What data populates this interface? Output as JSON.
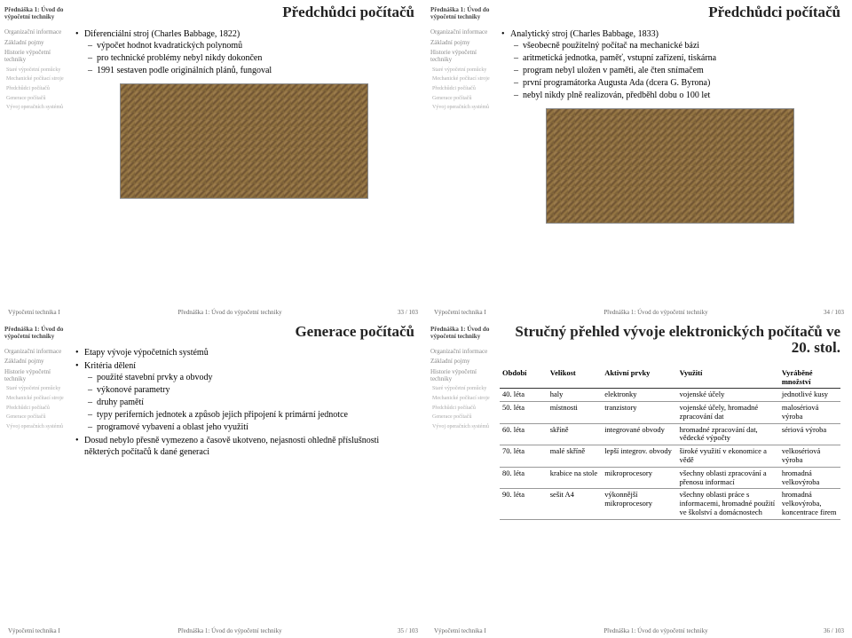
{
  "sidebar": {
    "header": "Přednáška 1:\nÚvod do výpočetní techniky",
    "items": [
      {
        "label": "Organizační informace",
        "lvl": 1
      },
      {
        "label": "Základní pojmy",
        "lvl": 1
      },
      {
        "label": "Historie výpočetní techniky",
        "lvl": 1
      },
      {
        "label": "Staré výpočetní pomůcky",
        "lvl": 2
      },
      {
        "label": "Mechanické počítací stroje",
        "lvl": 2
      },
      {
        "label": "Předchůdci počítačů",
        "lvl": 2
      },
      {
        "label": "Generace počítačů",
        "lvl": 2
      },
      {
        "label": "Vývoj operačních systémů",
        "lvl": 2
      }
    ]
  },
  "footer": {
    "left": "Výpočetní technika I",
    "mid": "Přednáška 1: Úvod do výpočetní techniky"
  },
  "slides": [
    {
      "title": "Předchůdci počítačů",
      "page": "33 / 103",
      "bullets": [
        {
          "t": "Diferenciální stroj (Charles Babbage, 1822)",
          "sub": [
            {
              "t": "výpočet hodnot kvadratických polynomů"
            },
            {
              "t": "pro technické problémy nebyl nikdy dokončen"
            },
            {
              "t": "1991 sestaven podle originálních plánů, fungoval"
            }
          ]
        }
      ],
      "image": true
    },
    {
      "title": "Předchůdci počítačů",
      "page": "34 / 103",
      "bullets": [
        {
          "t": "Analytický stroj (Charles Babbage, 1833)",
          "sub": [
            {
              "t": "všeobecně použitelný počítač na mechanické bázi"
            },
            {
              "t": "aritmetická jednotka, paměť, vstupní zařízení, tiskárna"
            },
            {
              "t": "program nebyl uložen v paměti, ale čten snímačem"
            },
            {
              "t": "první programátorka Augusta Ada (dcera G. Byrona)"
            },
            {
              "t": "nebyl nikdy plně realizován, předběhl dobu o 100 let"
            }
          ]
        }
      ],
      "image": true
    },
    {
      "title": "Generace počítačů",
      "page": "35 / 103",
      "bullets": [
        {
          "t": "Etapy vývoje výpočetních systémů"
        },
        {
          "t": "Kritéria dělení",
          "sub": [
            {
              "t": "použité stavební prvky a obvody"
            },
            {
              "t": "výkonové parametry"
            },
            {
              "t": "druhy pamětí"
            },
            {
              "t": "typy periferních jednotek a způsob jejich připojení k primární jednotce"
            },
            {
              "t": "programové vybavení a oblast jeho využití"
            }
          ]
        },
        {
          "t": "Dosud nebylo přesně vymezeno a časově ukotveno, nejasnosti ohledně příslušnosti některých počítačů k dané generaci"
        }
      ]
    },
    {
      "title": "Stručný přehled vývoje elektronických počítačů ve 20. stol.",
      "page": "36 / 103",
      "table": {
        "columns": [
          "Období",
          "Velikost",
          "Aktivní prvky",
          "Využití",
          "Vyráběné množství"
        ],
        "rows": [
          [
            "40. léta",
            "haly",
            "elektronky",
            "vojenské účely",
            "jednotlivé kusy"
          ],
          [
            "50. léta",
            "místnosti",
            "tranzistory",
            "vojenské účely, hromadné zpracování dat",
            "malosériová výroba"
          ],
          [
            "60. léta",
            "skříně",
            "integrované obvody",
            "hromadné zpracování dat, vědecké výpočty",
            "sériová výroba"
          ],
          [
            "70. léta",
            "malé skříně",
            "lepší integrov. obvody",
            "široké využití v ekonomice a vědě",
            "velkosériová výroba"
          ],
          [
            "80. léta",
            "krabice na stole",
            "mikroprocesory",
            "všechny oblasti zpracování a přenosu informací",
            "hromadná velkovýroba"
          ],
          [
            "90. léta",
            "sešit A4",
            "výkonnější mikroprocesory",
            "všechny oblasti práce s informacemi, hromadné použití ve školství a domácnostech",
            "hromadná velkovýroba, koncentrace firem"
          ]
        ],
        "col_widths": [
          "14%",
          "16%",
          "22%",
          "30%",
          "18%"
        ]
      }
    }
  ]
}
